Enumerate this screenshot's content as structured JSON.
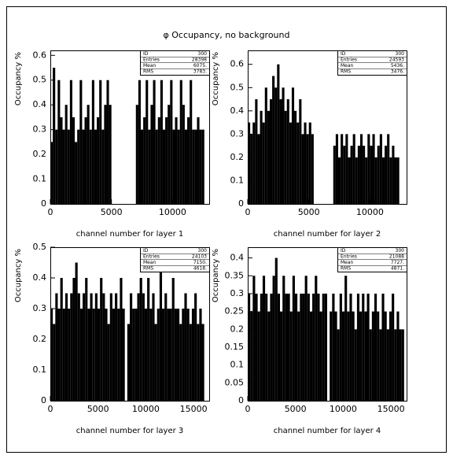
{
  "title": "φ Occupancy, no background",
  "chart_data": [
    {
      "type": "histogram",
      "ylabel": "Occupancy %",
      "xlabel": "channel number for layer 1",
      "color": "#000000",
      "stats": [
        [
          "ID",
          "300"
        ],
        [
          "Entries",
          "28398"
        ],
        [
          "Mean",
          "6075."
        ],
        [
          "RMS",
          "3783."
        ]
      ],
      "xlim": [
        0,
        13000
      ],
      "xticks": [
        0,
        5000,
        10000
      ],
      "ylim": [
        0,
        0.62
      ],
      "yticks": [
        0,
        0.1,
        0.2,
        0.3,
        0.4,
        0.5,
        0.6
      ],
      "bins": [
        0,
        200,
        400,
        600,
        800,
        1000,
        1200,
        1400,
        1600,
        1800,
        2000,
        2200,
        2400,
        2600,
        2800,
        3000,
        3200,
        3400,
        3600,
        3800,
        4000,
        4200,
        4400,
        4600,
        4800,
        5000,
        5200,
        5400,
        5600,
        5800,
        6000,
        6200,
        6400,
        6600,
        6800,
        7000,
        7200,
        7400,
        7600,
        7800,
        8000,
        8200,
        8400,
        8600,
        8800,
        9000,
        9200,
        9400,
        9600,
        9800,
        10000,
        10200,
        10400,
        10600,
        10800,
        11000,
        11200,
        11400,
        11600,
        11800,
        12000,
        12200,
        12400,
        12600,
        12800,
        13000
      ],
      "values": [
        0.25,
        0.55,
        0.3,
        0.5,
        0.35,
        0.3,
        0.4,
        0.3,
        0.5,
        0.35,
        0.25,
        0.3,
        0.5,
        0.3,
        0.35,
        0.4,
        0.3,
        0.5,
        0.3,
        0.35,
        0.5,
        0.3,
        0.4,
        0.5,
        0.4,
        0,
        0,
        0,
        0,
        0,
        0,
        0,
        0,
        0,
        0,
        0.4,
        0.5,
        0.3,
        0.35,
        0.5,
        0.3,
        0.4,
        0.5,
        0.3,
        0.35,
        0.5,
        0.3,
        0.35,
        0.4,
        0.5,
        0.3,
        0.35,
        0.3,
        0.5,
        0.4,
        0.3,
        0.35,
        0.5,
        0.3,
        0.3,
        0.35,
        0.3,
        0.3,
        0,
        0
      ]
    },
    {
      "type": "histogram",
      "ylabel": "Occupancy %",
      "xlabel": "channel number for layer 2",
      "color": "#000000",
      "stats": [
        [
          "ID",
          "300"
        ],
        [
          "Entries",
          "24593"
        ],
        [
          "Mean",
          "5436."
        ],
        [
          "RMS",
          "3476."
        ]
      ],
      "xlim": [
        0,
        13000
      ],
      "xticks": [
        0,
        5000,
        10000
      ],
      "ylim": [
        0,
        0.66
      ],
      "yticks": [
        0,
        0.1,
        0.2,
        0.3,
        0.4,
        0.5,
        0.6
      ],
      "bins": [
        0,
        200,
        400,
        600,
        800,
        1000,
        1200,
        1400,
        1600,
        1800,
        2000,
        2200,
        2400,
        2600,
        2800,
        3000,
        3200,
        3400,
        3600,
        3800,
        4000,
        4200,
        4400,
        4600,
        4800,
        5000,
        5200,
        5400,
        5600,
        5800,
        6000,
        6200,
        6400,
        6600,
        6800,
        7000,
        7200,
        7400,
        7600,
        7800,
        8000,
        8200,
        8400,
        8600,
        8800,
        9000,
        9200,
        9400,
        9600,
        9800,
        10000,
        10200,
        10400,
        10600,
        10800,
        11000,
        11200,
        11400,
        11600,
        11800,
        12000,
        12200,
        12400,
        12600,
        12800,
        13000
      ],
      "values": [
        0.35,
        0.3,
        0.35,
        0.45,
        0.3,
        0.4,
        0.35,
        0.5,
        0.4,
        0.45,
        0.55,
        0.5,
        0.6,
        0.45,
        0.5,
        0.4,
        0.45,
        0.35,
        0.5,
        0.4,
        0.35,
        0.45,
        0.3,
        0.35,
        0.3,
        0.35,
        0.3,
        0,
        0,
        0,
        0,
        0,
        0,
        0,
        0,
        0.25,
        0.3,
        0.2,
        0.3,
        0.25,
        0.3,
        0.2,
        0.25,
        0.3,
        0.2,
        0.25,
        0.3,
        0.25,
        0.2,
        0.3,
        0.25,
        0.3,
        0.2,
        0.25,
        0.3,
        0.2,
        0.25,
        0.3,
        0.2,
        0.25,
        0.2,
        0.2,
        0,
        0,
        0
      ]
    },
    {
      "type": "histogram",
      "ylabel": "Occupancy %",
      "xlabel": "channel number for layer 3",
      "color": "#000000",
      "stats": [
        [
          "ID",
          "300"
        ],
        [
          "Entries",
          "24103"
        ],
        [
          "Mean",
          "7150."
        ],
        [
          "RMS",
          "4618."
        ]
      ],
      "xlim": [
        0,
        16640
      ],
      "xticks": [
        0,
        5000,
        10000,
        15000
      ],
      "ylim": [
        0,
        0.5
      ],
      "yticks": [
        0,
        0.1,
        0.2,
        0.3,
        0.4,
        0.5
      ],
      "bins": [
        0,
        260,
        520,
        780,
        1040,
        1300,
        1560,
        1820,
        2080,
        2340,
        2600,
        2860,
        3120,
        3380,
        3640,
        3900,
        4160,
        4420,
        4680,
        4940,
        5200,
        5460,
        5720,
        5980,
        6240,
        6500,
        6760,
        7020,
        7280,
        7540,
        7800,
        8060,
        8320,
        8580,
        8840,
        9100,
        9360,
        9620,
        9880,
        10140,
        10400,
        10660,
        10920,
        11180,
        11440,
        11700,
        11960,
        12220,
        12480,
        12740,
        13000,
        13260,
        13520,
        13780,
        14040,
        14300,
        14560,
        14820,
        15080,
        15340,
        15600,
        15860,
        16120,
        16380,
        16640
      ],
      "values": [
        0.3,
        0.25,
        0.35,
        0.3,
        0.4,
        0.3,
        0.35,
        0.3,
        0.35,
        0.4,
        0.45,
        0.35,
        0.3,
        0.35,
        0.4,
        0.3,
        0.35,
        0.3,
        0.35,
        0.3,
        0.4,
        0.35,
        0.3,
        0.25,
        0.35,
        0.3,
        0.35,
        0.3,
        0.4,
        0.3,
        0,
        0.25,
        0.35,
        0.3,
        0.3,
        0.35,
        0.4,
        0.35,
        0.3,
        0.4,
        0.3,
        0.35,
        0.25,
        0.3,
        0.45,
        0.3,
        0.35,
        0.3,
        0.3,
        0.4,
        0.3,
        0.3,
        0.25,
        0.3,
        0.35,
        0.3,
        0.25,
        0.3,
        0.35,
        0.25,
        0.3,
        0.25,
        0,
        0
      ]
    },
    {
      "type": "histogram",
      "ylabel": "Occupancy %",
      "xlabel": "channel number for layer 4",
      "color": "#000000",
      "stats": [
        [
          "ID",
          "300"
        ],
        [
          "Entries",
          "21088"
        ],
        [
          "Mean",
          "7727."
        ],
        [
          "RMS",
          "4871."
        ]
      ],
      "xlim": [
        0,
        16640
      ],
      "xticks": [
        0,
        5000,
        10000,
        15000
      ],
      "ylim": [
        0,
        0.43
      ],
      "yticks": [
        0,
        0.05,
        0.1,
        0.15,
        0.2,
        0.25,
        0.3,
        0.35,
        0.4
      ],
      "bins": [
        0,
        260,
        520,
        780,
        1040,
        1300,
        1560,
        1820,
        2080,
        2340,
        2600,
        2860,
        3120,
        3380,
        3640,
        3900,
        4160,
        4420,
        4680,
        4940,
        5200,
        5460,
        5720,
        5980,
        6240,
        6500,
        6760,
        7020,
        7280,
        7540,
        7800,
        8060,
        8320,
        8580,
        8840,
        9100,
        9360,
        9620,
        9880,
        10140,
        10400,
        10660,
        10920,
        11180,
        11440,
        11700,
        11960,
        12220,
        12480,
        12740,
        13000,
        13260,
        13520,
        13780,
        14040,
        14300,
        14560,
        14820,
        15080,
        15340,
        15600,
        15860,
        16120,
        16380,
        16640
      ],
      "values": [
        0.3,
        0.25,
        0.35,
        0.3,
        0.25,
        0.3,
        0.35,
        0.3,
        0.25,
        0.3,
        0.35,
        0.4,
        0.3,
        0.25,
        0.35,
        0.3,
        0.3,
        0.25,
        0.35,
        0.3,
        0.25,
        0.3,
        0.3,
        0.35,
        0.3,
        0.25,
        0.3,
        0.35,
        0.3,
        0.25,
        0.3,
        0.3,
        0,
        0.25,
        0.3,
        0.25,
        0.2,
        0.3,
        0.25,
        0.35,
        0.25,
        0.3,
        0.25,
        0.2,
        0.3,
        0.25,
        0.3,
        0.25,
        0.3,
        0.2,
        0.25,
        0.3,
        0.25,
        0.2,
        0.3,
        0.25,
        0.2,
        0.25,
        0.3,
        0.2,
        0.25,
        0.2,
        0.2,
        0
      ]
    }
  ]
}
